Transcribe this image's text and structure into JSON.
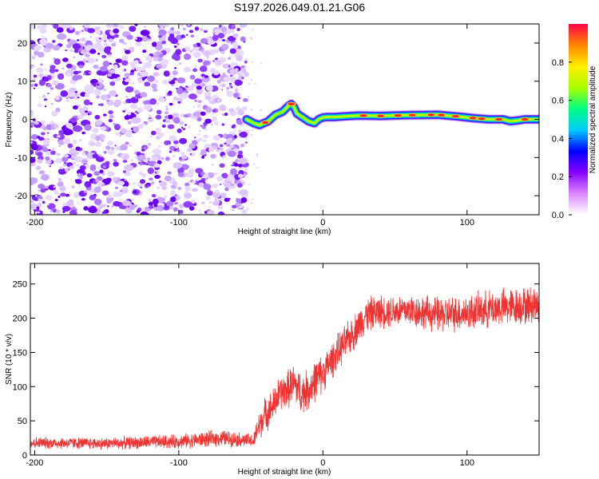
{
  "title": "S197.2026.049.01.21.G06",
  "chart_data": [
    {
      "type": "heatmap",
      "title": "S197.2026.049.01.21.G06",
      "xlabel": "Height of straight line (km)",
      "ylabel": "Frequency (Hz)",
      "xlim": [
        -203,
        150
      ],
      "ylim": [
        -25,
        25
      ],
      "xticks": [
        -200,
        -100,
        0,
        100
      ],
      "yticks": [
        -20,
        -10,
        0,
        10,
        20
      ],
      "xtick_labels": [
        "-200",
        "-100",
        "0",
        "100"
      ],
      "ytick_labels": [
        "-20",
        "-10",
        "0",
        "10",
        "20"
      ],
      "noise_region_x": [
        -203,
        -53
      ],
      "ridge": {
        "x": [
          -53,
          -48,
          -44,
          -38,
          -33,
          -28,
          -24,
          -22,
          -20,
          -18,
          -14,
          -10,
          -6,
          -3,
          0,
          3,
          8,
          15,
          25,
          40,
          60,
          80,
          95,
          105,
          115,
          125,
          130,
          135,
          140,
          150
        ],
        "y": [
          0,
          -1,
          -1.5,
          -0.5,
          1.2,
          2,
          3.5,
          4,
          3.2,
          1.5,
          0.5,
          -0.5,
          -1,
          0,
          0.5,
          0.6,
          0.6,
          0.8,
          1,
          0.9,
          1.1,
          1.2,
          0.7,
          0.3,
          0,
          0,
          -0.5,
          -0.3,
          0,
          0
        ]
      },
      "colorbar": {
        "label": "Normalized spectral amplitude",
        "range": [
          0,
          1
        ],
        "ticks": [
          0.0,
          0.2,
          0.4,
          0.6,
          0.8
        ],
        "tick_labels": [
          "0.0",
          "0.2",
          "0.4",
          "0.6",
          "0.8"
        ],
        "colors": [
          "#ffffff",
          "#dd88ff",
          "#8800ff",
          "#0000ff",
          "#00ccff",
          "#00ff80",
          "#aaff00",
          "#ffee00",
          "#ff8800",
          "#ff0044"
        ]
      }
    },
    {
      "type": "line",
      "xlabel": "Height of straight line (km)",
      "ylabel": "SNR (10 * v/v)",
      "xlim": [
        -203,
        150
      ],
      "ylim": [
        0,
        280
      ],
      "xticks": [
        -200,
        -100,
        0,
        100
      ],
      "yticks": [
        0,
        50,
        100,
        150,
        200,
        250
      ],
      "xtick_labels": [
        "-200",
        "-100",
        "0",
        "100"
      ],
      "ytick_labels": [
        "0",
        "50",
        "100",
        "150",
        "200",
        "250"
      ],
      "line_color": "#ee3333",
      "series": [
        {
          "name": "SNR",
          "x": [
            -203,
            -150,
            -100,
            -70,
            -55,
            -48,
            -45,
            -40,
            -35,
            -30,
            -25,
            -20,
            -15,
            -10,
            -5,
            0,
            10,
            20,
            25,
            30,
            40,
            60,
            80,
            100,
            120,
            150
          ],
          "y": [
            18,
            17,
            20,
            25,
            22,
            20,
            40,
            60,
            70,
            90,
            95,
            105,
            90,
            95,
            110,
            120,
            150,
            175,
            190,
            205,
            210,
            212,
            205,
            208,
            215,
            220
          ],
          "noise_amplitude": [
            10,
            10,
            12,
            14,
            12,
            12,
            25,
            28,
            30,
            30,
            32,
            35,
            35,
            35,
            35,
            32,
            30,
            30,
            30,
            30,
            28,
            28,
            30,
            30,
            32,
            32
          ]
        }
      ]
    }
  ]
}
